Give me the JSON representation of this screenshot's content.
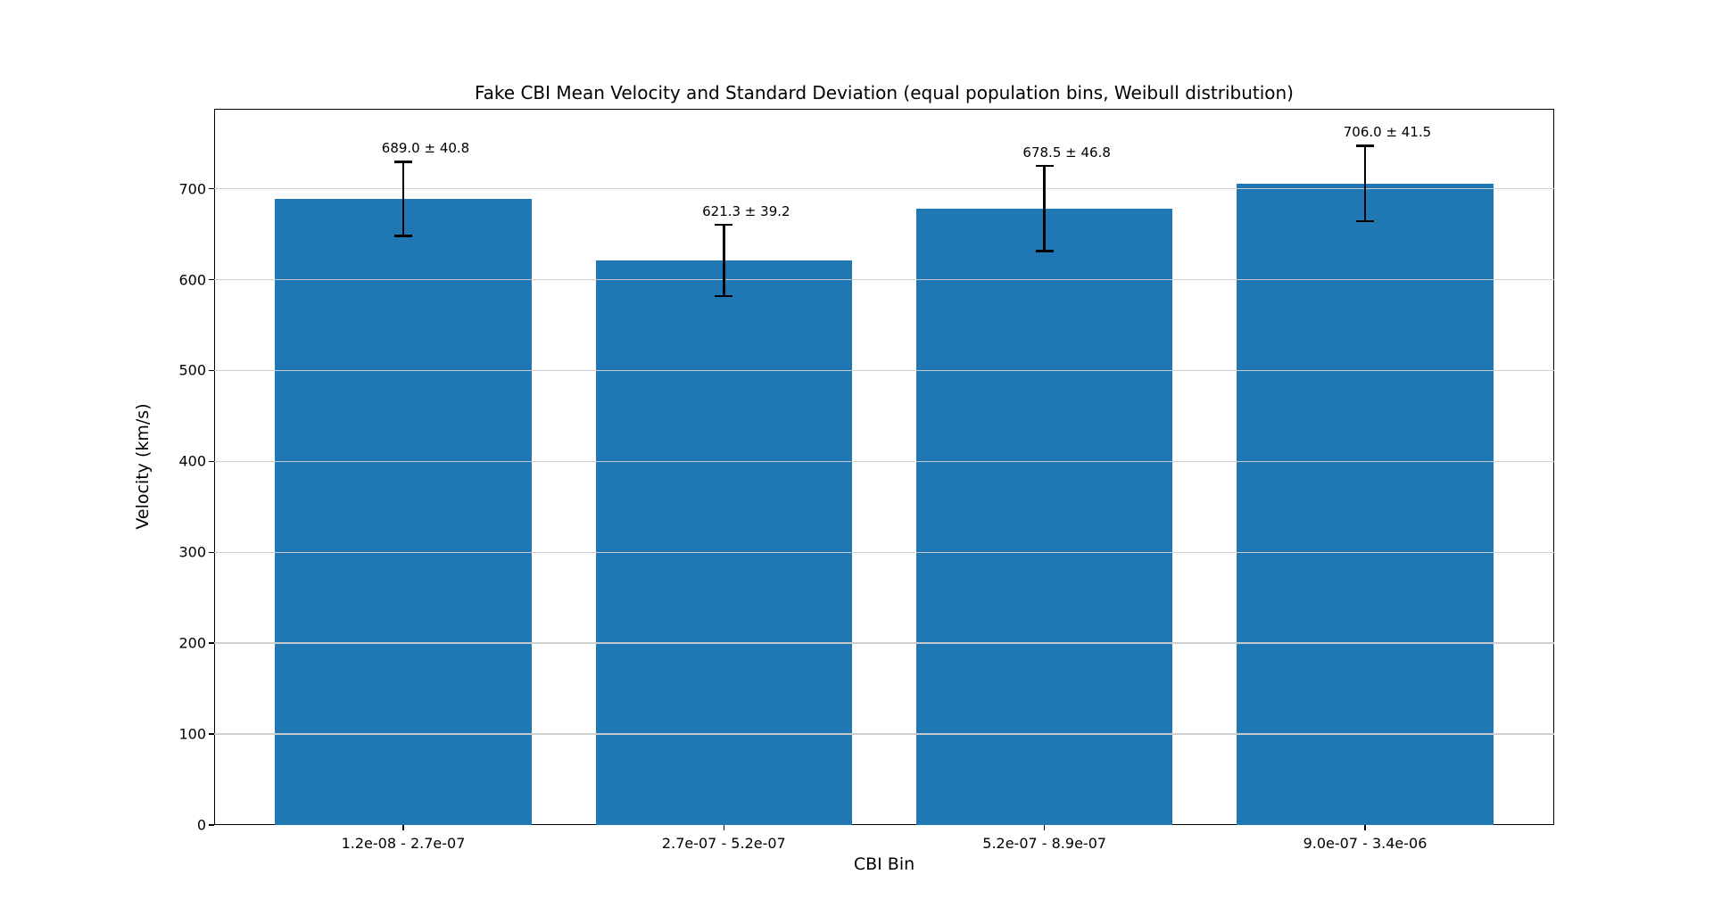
{
  "chart_data": {
    "type": "bar",
    "title": "Fake CBI Mean Velocity and Standard Deviation (equal population bins, Weibull distribution)",
    "xlabel": "CBI Bin",
    "ylabel": "Velocity (km/s)",
    "categories": [
      "1.2e-08 - 2.7e-07",
      "2.7e-07 - 5.2e-07",
      "5.2e-07 - 8.9e-07",
      "9.0e-07 - 3.4e-06"
    ],
    "values": [
      689.0,
      621.3,
      678.5,
      706.0
    ],
    "errors": [
      40.8,
      39.2,
      46.8,
      41.5
    ],
    "annotations": [
      "689.0 ± 40.8",
      "621.3 ± 39.2",
      "678.5 ± 46.8",
      "706.0 ± 41.5"
    ],
    "yticks": [
      0,
      100,
      200,
      300,
      400,
      500,
      600,
      700
    ],
    "ylim": [
      0,
      788
    ],
    "grid": true,
    "legend": null,
    "bar_color": "#1f77b4",
    "error_color": "#000000",
    "grid_color": "#cdcdcd",
    "background": "#ffffff"
  }
}
